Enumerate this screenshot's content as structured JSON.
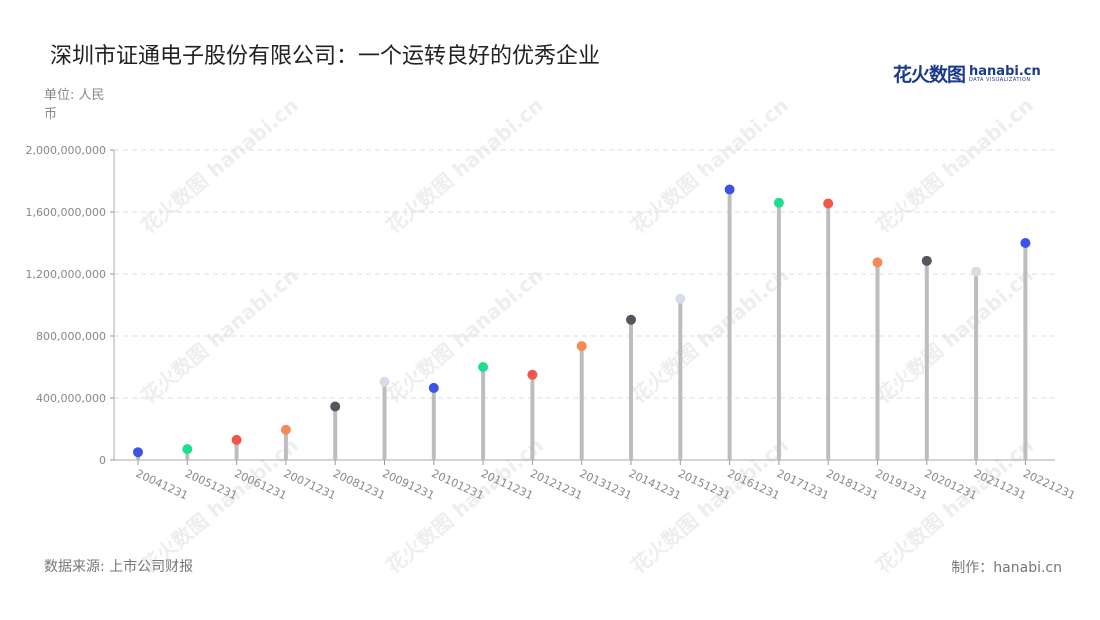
{
  "title": "深圳市证通电子股份有限公司：一个运转良好的优秀企业",
  "unit_label": "单位: 人民币",
  "source_label": "数据来源: 上市公司财报",
  "maker_label": "制作：hanabi.cn",
  "logo": {
    "cn": "花火数图",
    "en": "hanabi.cn",
    "sub": "DATA VISUALIZATION"
  },
  "watermark_text": "花火数图 hanabi.cn",
  "chart_data": {
    "type": "lollipop",
    "title": "深圳市证通电子股份有限公司：一个运转良好的优秀企业",
    "xlabel": "",
    "ylabel": "单位: 人民币",
    "ylim": [
      0,
      2000000000
    ],
    "yticks": [
      0,
      400000000,
      800000000,
      1200000000,
      1600000000,
      2000000000
    ],
    "ytick_labels": [
      "0",
      "400,000,000",
      "800,000,000",
      "1,200,000,000",
      "1,600,000,000",
      "2,000,000,000"
    ],
    "grid": true,
    "categories": [
      "20041231",
      "20051231",
      "20061231",
      "20071231",
      "20081231",
      "20091231",
      "20101231",
      "20111231",
      "20121231",
      "20131231",
      "20141231",
      "20151231",
      "20161231",
      "20171231",
      "20181231",
      "20191231",
      "20201231",
      "20211231",
      "20221231"
    ],
    "values": [
      50000000,
      70000000,
      130000000,
      195000000,
      345000000,
      505000000,
      465000000,
      600000000,
      550000000,
      735000000,
      905000000,
      1040000000,
      1745000000,
      1660000000,
      1655000000,
      1275000000,
      1285000000,
      1215000000,
      1400000000
    ],
    "colors": [
      "#3a55e6",
      "#1ede8f",
      "#f2554a",
      "#f58a55",
      "#555560",
      "#d8dce8"
    ]
  }
}
